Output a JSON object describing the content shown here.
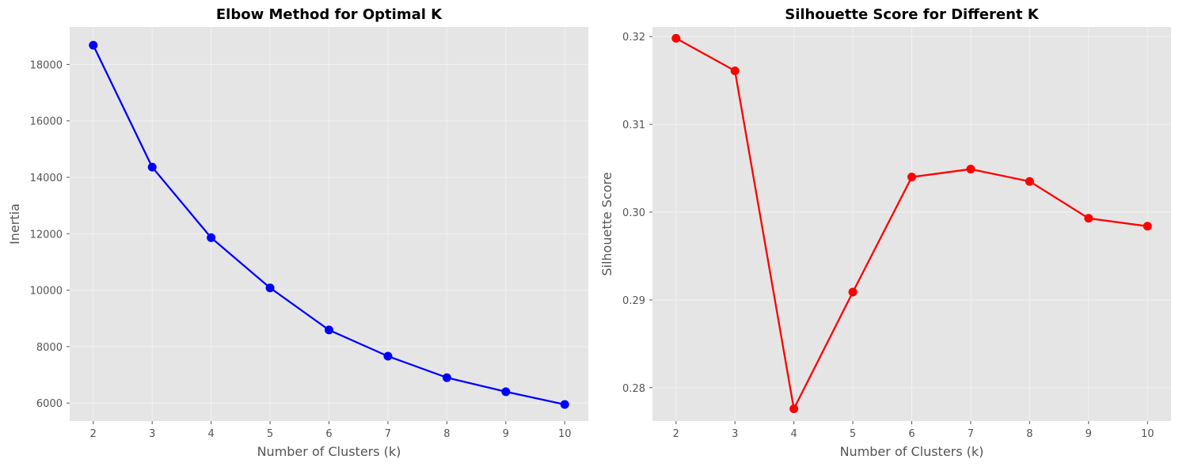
{
  "chart_data": [
    {
      "type": "line",
      "title": "Elbow Method for Optimal K",
      "xlabel": "Number of Clusters (k)",
      "ylabel": "Inertia",
      "x": [
        2,
        3,
        4,
        5,
        6,
        7,
        8,
        9,
        10
      ],
      "xlim": [
        1.6,
        10.4
      ],
      "ylim": [
        5360,
        19330
      ],
      "xticks": [
        2,
        3,
        4,
        5,
        6,
        7,
        8,
        9,
        10
      ],
      "yticks": [
        6000,
        8000,
        10000,
        12000,
        14000,
        16000,
        18000
      ],
      "grid": true,
      "series": [
        {
          "values": [
            18680,
            14360,
            11860,
            10080,
            8590,
            7660,
            6900,
            6400,
            5950
          ],
          "color": "#0000ff",
          "marker": "circle"
        }
      ]
    },
    {
      "type": "line",
      "title": "Silhouette Score for Different K",
      "xlabel": "Number of Clusters (k)",
      "ylabel": "Silhouette Score",
      "x": [
        2,
        3,
        4,
        5,
        6,
        7,
        8,
        9,
        10
      ],
      "xlim": [
        1.6,
        10.4
      ],
      "ylim": [
        0.2762,
        0.3211
      ],
      "xticks": [
        2,
        3,
        4,
        5,
        6,
        7,
        8,
        9,
        10
      ],
      "yticks": [
        0.28,
        0.29,
        0.3,
        0.31,
        0.32
      ],
      "ytick_labels": [
        "0.28",
        "0.29",
        "0.30",
        "0.31",
        "0.32"
      ],
      "grid": true,
      "series": [
        {
          "values": [
            0.3198,
            0.3161,
            0.2776,
            0.2909,
            0.304,
            0.3049,
            0.3035,
            0.2993,
            0.2984
          ],
          "color": "#ff0000",
          "marker": "circle"
        }
      ]
    }
  ]
}
